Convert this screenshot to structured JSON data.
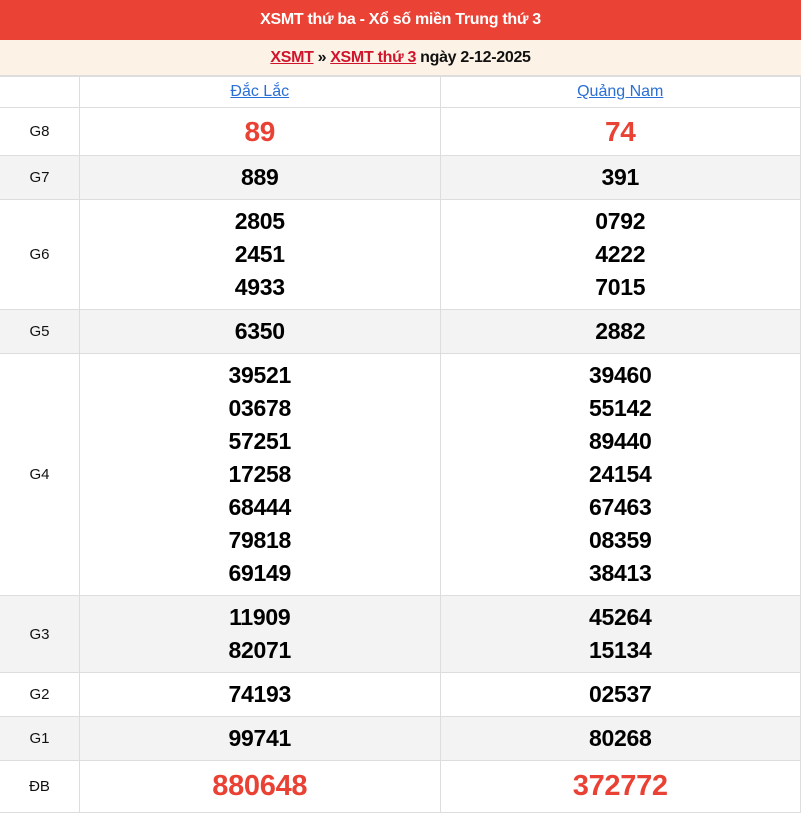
{
  "header": {
    "title": "XSMT thứ ba - Xổ số miền Trung thứ 3"
  },
  "breadcrumb": {
    "link1": "XSMT",
    "separator": "»",
    "link2": "XSMT thứ 3",
    "date_text": "ngày 2-12-2025"
  },
  "table": {
    "provinces": [
      "Đắc Lắc",
      "Quảng Nam"
    ],
    "rows": [
      {
        "label": "G8",
        "cls": "g8",
        "values": [
          [
            "89"
          ],
          [
            "74"
          ]
        ]
      },
      {
        "label": "G7",
        "cls": "gray",
        "values": [
          [
            "889"
          ],
          [
            "391"
          ]
        ]
      },
      {
        "label": "G6",
        "cls": "",
        "values": [
          [
            "2805",
            "2451",
            "4933"
          ],
          [
            "0792",
            "4222",
            "7015"
          ]
        ]
      },
      {
        "label": "G5",
        "cls": "gray",
        "values": [
          [
            "6350"
          ],
          [
            "2882"
          ]
        ]
      },
      {
        "label": "G4",
        "cls": "",
        "values": [
          [
            "39521",
            "03678",
            "57251",
            "17258",
            "68444",
            "79818",
            "69149"
          ],
          [
            "39460",
            "55142",
            "89440",
            "24154",
            "67463",
            "08359",
            "38413"
          ]
        ]
      },
      {
        "label": "G3",
        "cls": "gray",
        "values": [
          [
            "11909",
            "82071"
          ],
          [
            "45264",
            "15134"
          ]
        ]
      },
      {
        "label": "G2",
        "cls": "",
        "values": [
          [
            "74193"
          ],
          [
            "02537"
          ]
        ]
      },
      {
        "label": "G1",
        "cls": "gray",
        "values": [
          [
            "99741"
          ],
          [
            "80268"
          ]
        ]
      },
      {
        "label": "ĐB",
        "cls": "db",
        "values": [
          [
            "880648"
          ],
          [
            "372772"
          ]
        ]
      }
    ]
  },
  "colors": {
    "header_bg": "#ea4335",
    "highlight": "#e94235",
    "link": "#2a6fd6",
    "crumb_link": "#d0142c"
  }
}
